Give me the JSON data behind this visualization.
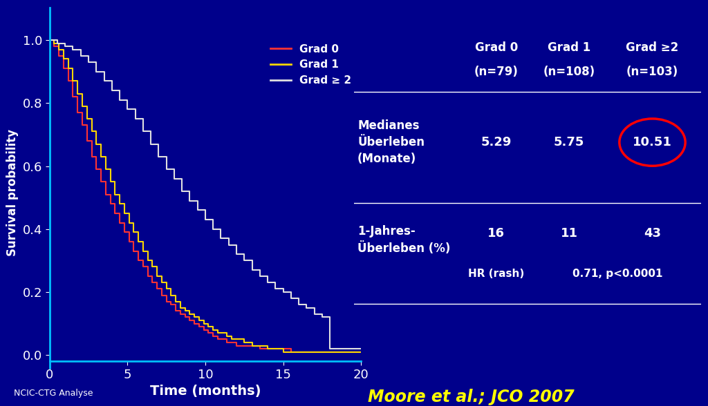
{
  "background_color": "#00008B",
  "plot_bg_color": "#00008B",
  "axis_color": "#00BFFF",
  "text_color": "#FFFFFF",
  "xlabel": "Time (months)",
  "ylabel": "Survival probability",
  "xlim": [
    0,
    20
  ],
  "ylim": [
    -0.02,
    1.05
  ],
  "xticks": [
    0,
    5,
    10,
    15,
    20
  ],
  "yticks": [
    0,
    0.2,
    0.4,
    0.6,
    0.8,
    1.0
  ],
  "grad0_color": "#FF3333",
  "grad1_color": "#FFD700",
  "grad2_color": "#E0E0E0",
  "legend_labels": [
    "Grad 0",
    "Grad 1",
    "Grad ≥ 2"
  ],
  "footnote": "NCIC-CTG Analyse",
  "citation": "Moore et al.; JCO 2007",
  "grad0_x": [
    0.0,
    0.3,
    0.6,
    0.9,
    1.2,
    1.5,
    1.8,
    2.1,
    2.4,
    2.7,
    3.0,
    3.3,
    3.6,
    3.9,
    4.2,
    4.5,
    4.8,
    5.1,
    5.4,
    5.7,
    6.0,
    6.3,
    6.6,
    6.9,
    7.2,
    7.5,
    7.8,
    8.1,
    8.4,
    8.7,
    9.0,
    9.3,
    9.6,
    9.9,
    10.2,
    10.5,
    10.8,
    11.1,
    11.4,
    11.7,
    12.0,
    12.5,
    13.0,
    13.5,
    14.0,
    14.5,
    15.0,
    15.5,
    16.0,
    20.0
  ],
  "grad0_y": [
    1.0,
    0.98,
    0.95,
    0.91,
    0.87,
    0.82,
    0.77,
    0.73,
    0.68,
    0.63,
    0.59,
    0.55,
    0.51,
    0.48,
    0.45,
    0.42,
    0.39,
    0.36,
    0.33,
    0.3,
    0.28,
    0.25,
    0.23,
    0.21,
    0.19,
    0.17,
    0.16,
    0.14,
    0.13,
    0.12,
    0.11,
    0.1,
    0.09,
    0.08,
    0.07,
    0.06,
    0.05,
    0.05,
    0.04,
    0.04,
    0.03,
    0.03,
    0.03,
    0.02,
    0.02,
    0.02,
    0.02,
    0.01,
    0.01,
    0.01
  ],
  "grad1_x": [
    0.0,
    0.3,
    0.6,
    0.9,
    1.2,
    1.5,
    1.8,
    2.1,
    2.4,
    2.7,
    3.0,
    3.3,
    3.6,
    3.9,
    4.2,
    4.5,
    4.8,
    5.1,
    5.4,
    5.7,
    6.0,
    6.3,
    6.6,
    6.9,
    7.2,
    7.5,
    7.8,
    8.1,
    8.4,
    8.7,
    9.0,
    9.3,
    9.6,
    9.9,
    10.2,
    10.5,
    10.8,
    11.1,
    11.4,
    11.7,
    12.0,
    12.5,
    13.0,
    13.5,
    14.0,
    14.5,
    15.0,
    15.5,
    16.0,
    17.0,
    18.0,
    20.0
  ],
  "grad1_y": [
    1.0,
    0.99,
    0.97,
    0.94,
    0.91,
    0.87,
    0.83,
    0.79,
    0.75,
    0.71,
    0.67,
    0.63,
    0.59,
    0.55,
    0.51,
    0.48,
    0.45,
    0.42,
    0.39,
    0.36,
    0.33,
    0.3,
    0.28,
    0.25,
    0.23,
    0.21,
    0.19,
    0.17,
    0.15,
    0.14,
    0.13,
    0.12,
    0.11,
    0.1,
    0.09,
    0.08,
    0.07,
    0.07,
    0.06,
    0.05,
    0.05,
    0.04,
    0.03,
    0.03,
    0.02,
    0.02,
    0.01,
    0.01,
    0.01,
    0.01,
    0.01,
    0.01
  ],
  "grad2_x": [
    0.0,
    0.5,
    1.0,
    1.5,
    2.0,
    2.5,
    3.0,
    3.5,
    4.0,
    4.5,
    5.0,
    5.5,
    6.0,
    6.5,
    7.0,
    7.5,
    8.0,
    8.5,
    9.0,
    9.5,
    10.0,
    10.5,
    11.0,
    11.5,
    12.0,
    12.5,
    13.0,
    13.5,
    14.0,
    14.5,
    15.0,
    15.5,
    16.0,
    16.5,
    17.0,
    17.5,
    18.0,
    18.5,
    19.0,
    20.0
  ],
  "grad2_y": [
    1.0,
    0.99,
    0.98,
    0.97,
    0.95,
    0.93,
    0.9,
    0.87,
    0.84,
    0.81,
    0.78,
    0.75,
    0.71,
    0.67,
    0.63,
    0.59,
    0.56,
    0.52,
    0.49,
    0.46,
    0.43,
    0.4,
    0.37,
    0.35,
    0.32,
    0.3,
    0.27,
    0.25,
    0.23,
    0.21,
    0.2,
    0.18,
    0.16,
    0.15,
    0.13,
    0.12,
    0.02,
    0.02,
    0.02,
    0.02
  ]
}
